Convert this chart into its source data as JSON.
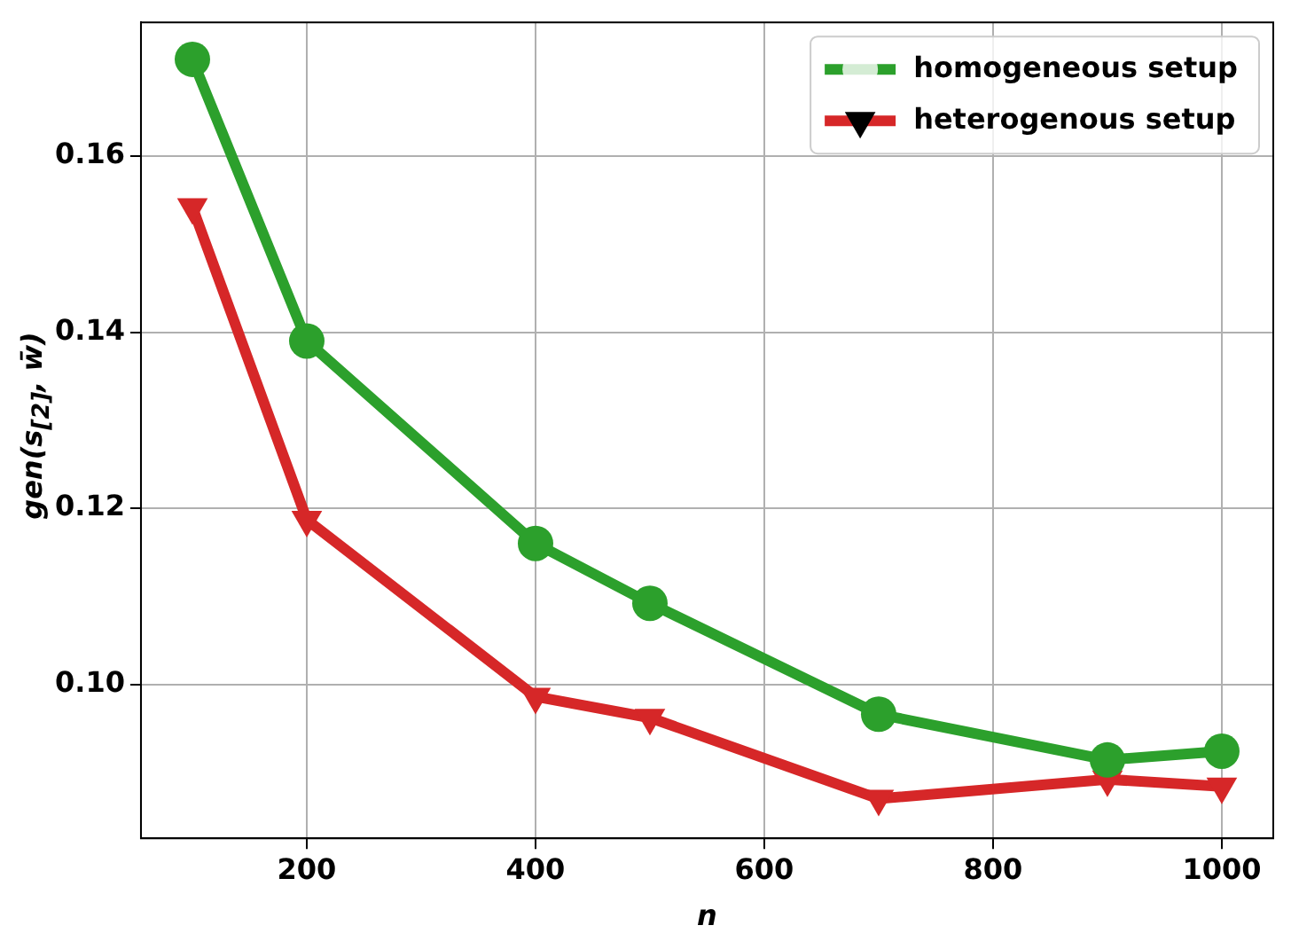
{
  "chart_data": {
    "type": "line",
    "xlabel": "n",
    "ylabel": "gen(s$_{[2]}$, w̄)",
    "x": [
      100,
      200,
      400,
      500,
      700,
      900,
      1000
    ],
    "series": [
      {
        "name": "homogeneous setup",
        "color": "#2ca02c",
        "marker": "circle",
        "values": [
          0.171,
          0.139,
          0.116,
          0.1092,
          0.0966,
          0.0914,
          0.0924
        ]
      },
      {
        "name": "heterogenous setup",
        "color": "#d62728",
        "marker": "triangle",
        "values": [
          0.1542,
          0.1187,
          0.0986,
          0.0962,
          0.087,
          0.0892,
          0.0884
        ]
      }
    ],
    "xlim": [
      55,
      1045
    ],
    "xticks": [
      200,
      400,
      600,
      800,
      1000
    ],
    "ylim": [
      0.0825,
      0.1752
    ],
    "yticks": [
      {
        "value": 0.1,
        "label": "0.10"
      },
      {
        "value": 0.12,
        "label": "0.12"
      },
      {
        "value": 0.14,
        "label": "0.14"
      },
      {
        "value": 0.16,
        "label": "0.16"
      }
    ],
    "grid": true,
    "legend": "top right",
    "line_style": "solid"
  }
}
